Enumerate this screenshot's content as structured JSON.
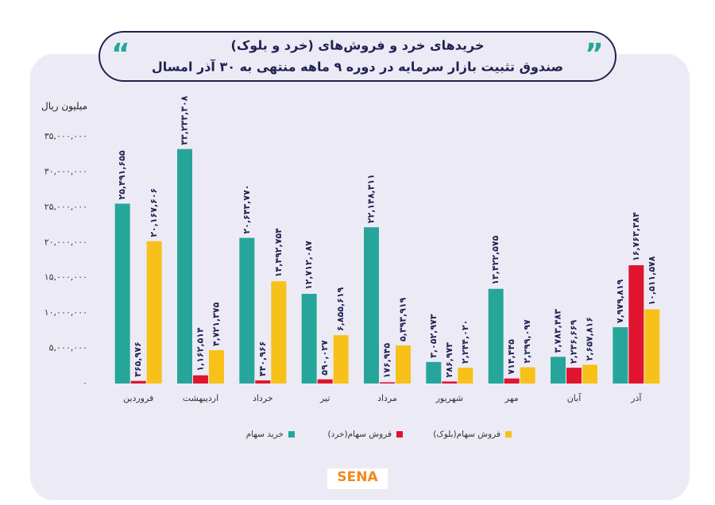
{
  "chart_data": {
    "type": "bar",
    "title": "خریدهای خرد و فروش‌های (خرد و بلوک)",
    "subtitle": "صندوق تثبیت بازار سرمایه در دوره ۹ ماهه منتهی به ۳۰ آذر امسال",
    "y_label": "میلیون ریال",
    "logo": "SENA",
    "categories": [
      "فروردین",
      "اردیبهشت",
      "خرداد",
      "تیر",
      "مرداد",
      "شهریور",
      "مهر",
      "آبان",
      "آذر"
    ],
    "series": [
      {
        "name": "خرید سهام",
        "color": "#26a69a",
        "values": [
          25491655,
          33233308,
          20643770,
          12712087,
          22148311,
          3052973,
          13422575,
          3783483,
          7979819
        ],
        "value_labels": [
          "۲۵,۴۹۱,۶۵۵",
          "۳۳,۲۳۳,۳۰۸",
          "۲۰,۶۴۳,۷۷۰",
          "۱۲,۷۱۲,۰۸۷",
          "۲۲,۱۴۸,۳۱۱",
          "۳,۰۵۲,۹۷۳",
          "۱۳,۴۲۲,۵۷۵",
          "۳,۷۸۳,۴۸۳",
          "۷,۹۷۹,۸۱۹"
        ]
      },
      {
        "name": "فروش سهام(خرد)",
        "color": "#e0142e",
        "values": [
          365976,
          1162514,
          440966,
          590027,
          176945,
          286973,
          714445,
          2236669,
          16763384
        ],
        "value_labels": [
          "۳۶۵,۹۷۶",
          "۱,۱۶۲,۵۱۴",
          "۴۴۰,۹۶۶",
          "۵۹۰,۰۲۷",
          "۱۷۶,۹۴۵",
          "۲۸۶,۹۷۳",
          "۷۱۴,۴۴۵",
          "۲,۲۳۶,۶۶۹",
          "۱۶,۷۶۳,۳۸۴"
        ]
      },
      {
        "name": "فروش سهام(بلوک)",
        "color": "#f8c11a",
        "values": [
          20167606,
          4721375,
          14492754,
          6855619,
          5393919,
          2244020,
          2299097,
          2657816,
          10511578
        ],
        "value_labels": [
          "۲۰,۱۶۷,۶۰۶",
          "۴,۷۲۱,۳۷۵",
          "۱۴,۴۹۲,۷۵۴",
          "۶,۸۵۵,۶۱۹",
          "۵,۳۹۳,۹۱۹",
          "۲,۲۴۴,۰۲۰",
          "۲,۲۹۹,۰۹۷",
          "۲,۶۵۷,۸۱۶",
          "۱۰,۵۱۱,۵۷۸"
        ]
      }
    ],
    "ylim": [
      0,
      35000000
    ],
    "yticks": [
      {
        "value": 0,
        "label": "۰"
      },
      {
        "value": 5000000,
        "label": "۵,۰۰۰,۰۰۰"
      },
      {
        "value": 10000000,
        "label": "۱۰,۰۰۰,۰۰۰"
      },
      {
        "value": 15000000,
        "label": "۱۵,۰۰۰,۰۰۰"
      },
      {
        "value": 20000000,
        "label": "۲۰,۰۰۰,۰۰۰"
      },
      {
        "value": 25000000,
        "label": "۲۵,۰۰۰,۰۰۰"
      },
      {
        "value": 30000000,
        "label": "۳۰,۰۰۰,۰۰۰"
      },
      {
        "value": 35000000,
        "label": "۳۵,۰۰۰,۰۰۰"
      }
    ],
    "grid": false,
    "legend": "bottom"
  }
}
